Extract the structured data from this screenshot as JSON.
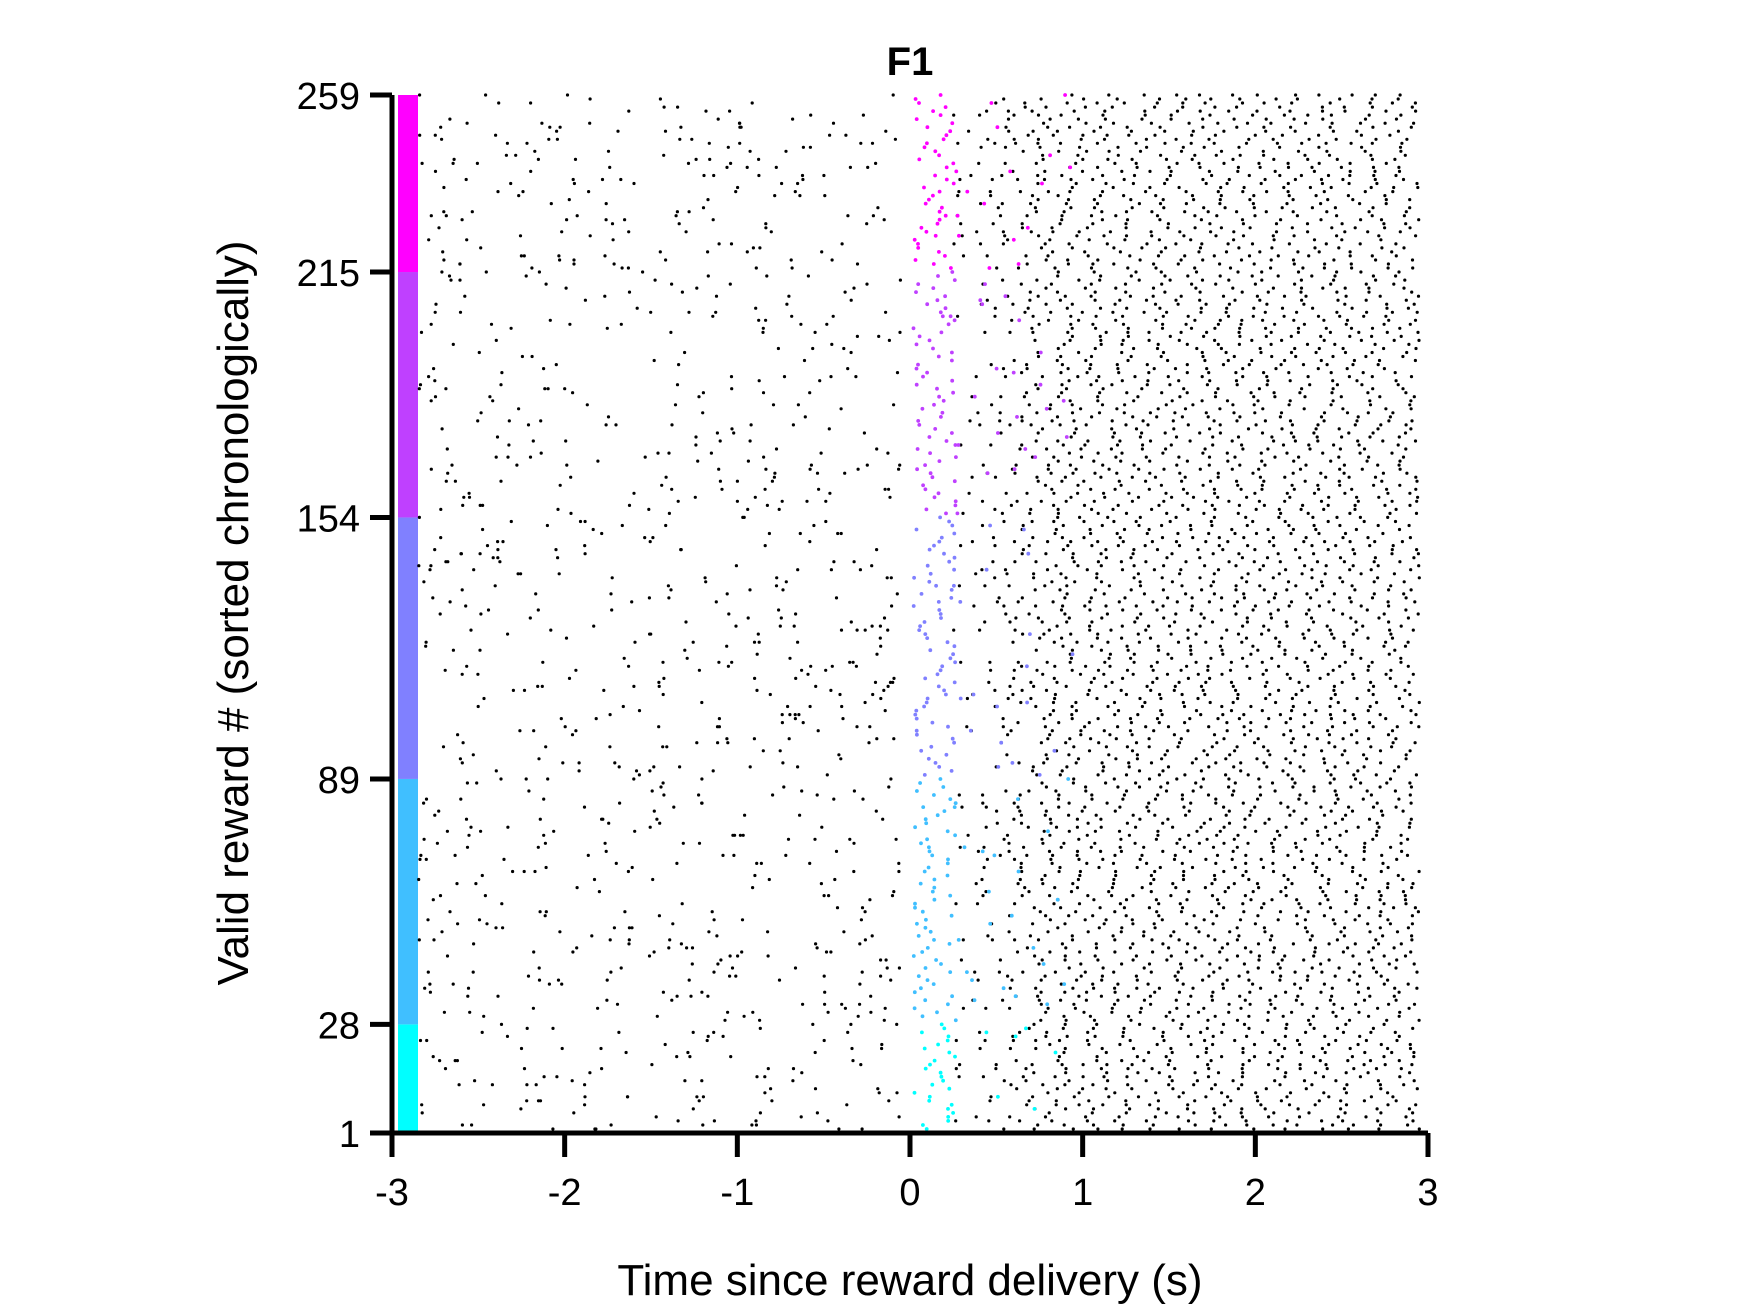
{
  "chart_data": {
    "type": "scatter",
    "subtype": "raster",
    "title": "F1",
    "xlabel": "Time since reward delivery (s)",
    "ylabel": "Valid reward # (sorted chronologically)",
    "xlim": [
      -3,
      3
    ],
    "ylim": [
      1,
      259
    ],
    "x_ticks": [
      -3,
      -2,
      -1,
      0,
      1,
      2,
      3
    ],
    "x_tick_labels": [
      "-3",
      "-2",
      "-1",
      "0",
      "1",
      "2",
      "3"
    ],
    "y_ticks": [
      1,
      28,
      89,
      154,
      215,
      259
    ],
    "y_tick_labels": [
      "1",
      "28",
      "89",
      "154",
      "215",
      "259"
    ],
    "n_trials": 259,
    "session_bands": [
      {
        "from": 1,
        "to": 28,
        "color": "#00ffff"
      },
      {
        "from": 28,
        "to": 89,
        "color": "#40bfff"
      },
      {
        "from": 89,
        "to": 154,
        "color": "#8080ff"
      },
      {
        "from": 154,
        "to": 215,
        "color": "#bf40ff"
      },
      {
        "from": 215,
        "to": 259,
        "color": "#ff00ff"
      }
    ],
    "spike_color": "#000000",
    "lick_events_note": "Colored dots mark first licks after reward, colored by session band"
  }
}
